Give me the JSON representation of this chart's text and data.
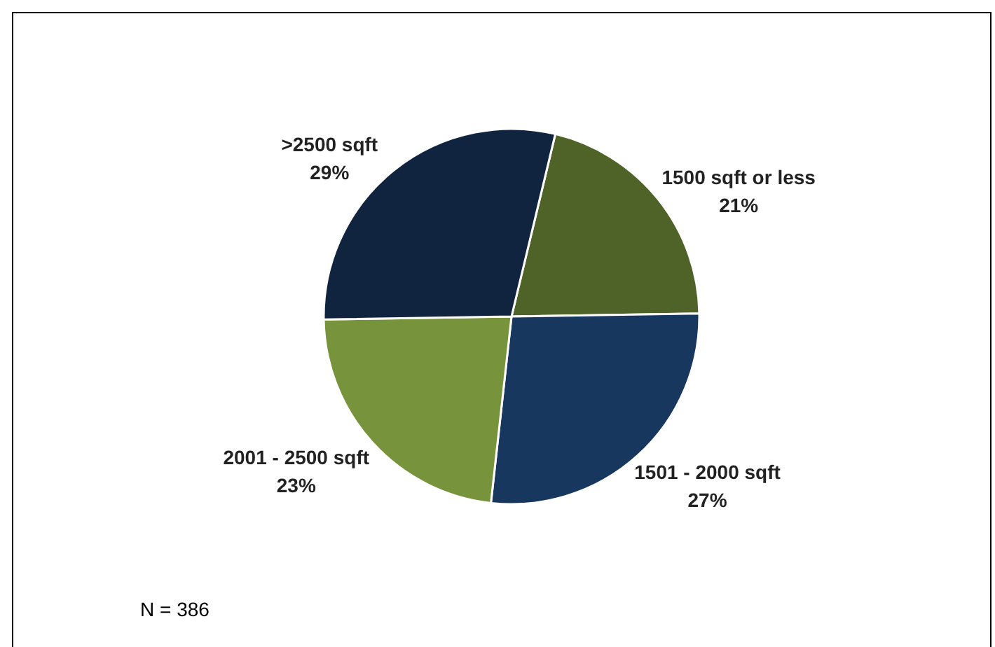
{
  "chart_data": {
    "type": "pie",
    "categories": [
      "1500 sqft or less",
      "1501 - 2000 sqft",
      "2001 - 2500 sqft",
      ">2500 sqft"
    ],
    "values": [
      21,
      27,
      23,
      29
    ],
    "colors": [
      "#4f6228",
      "#17375e",
      "#77933c",
      "#10243f"
    ],
    "value_labels": [
      "21%",
      "27%",
      "23%",
      "29%"
    ],
    "annotations": [
      "N = 386"
    ],
    "legend": false
  }
}
